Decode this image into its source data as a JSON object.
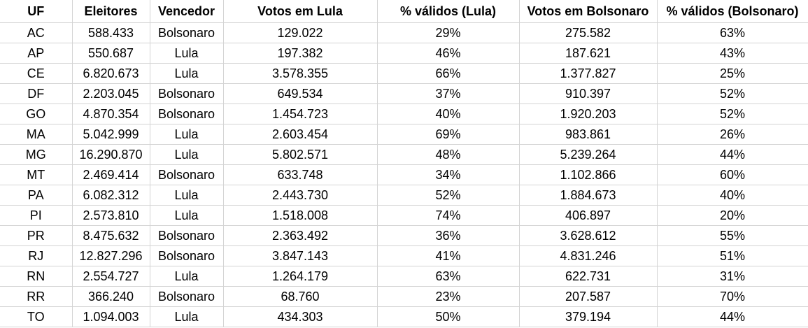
{
  "headers": {
    "uf": "UF",
    "eleitores": "Eleitores",
    "vencedor": "Vencedor",
    "votos_lula": "Votos em Lula",
    "pct_lula": "% válidos (Lula)",
    "votos_bolsonaro": "Votos em Bolsonaro",
    "pct_bolsonaro": "% válidos (Bolsonaro)"
  },
  "rows": [
    {
      "uf": "AC",
      "eleitores": "588.433",
      "vencedor": "Bolsonaro",
      "votos_lula": "129.022",
      "pct_lula": "29%",
      "votos_bolsonaro": "275.582",
      "pct_bolsonaro": "63%"
    },
    {
      "uf": "AP",
      "eleitores": "550.687",
      "vencedor": "Lula",
      "votos_lula": "197.382",
      "pct_lula": "46%",
      "votos_bolsonaro": "187.621",
      "pct_bolsonaro": "43%"
    },
    {
      "uf": "CE",
      "eleitores": "6.820.673",
      "vencedor": "Lula",
      "votos_lula": "3.578.355",
      "pct_lula": "66%",
      "votos_bolsonaro": "1.377.827",
      "pct_bolsonaro": "25%"
    },
    {
      "uf": "DF",
      "eleitores": "2.203.045",
      "vencedor": "Bolsonaro",
      "votos_lula": "649.534",
      "pct_lula": "37%",
      "votos_bolsonaro": "910.397",
      "pct_bolsonaro": "52%"
    },
    {
      "uf": "GO",
      "eleitores": "4.870.354",
      "vencedor": "Bolsonaro",
      "votos_lula": "1.454.723",
      "pct_lula": "40%",
      "votos_bolsonaro": "1.920.203",
      "pct_bolsonaro": "52%"
    },
    {
      "uf": "MA",
      "eleitores": "5.042.999",
      "vencedor": "Lula",
      "votos_lula": "2.603.454",
      "pct_lula": "69%",
      "votos_bolsonaro": "983.861",
      "pct_bolsonaro": "26%"
    },
    {
      "uf": "MG",
      "eleitores": "16.290.870",
      "vencedor": "Lula",
      "votos_lula": "5.802.571",
      "pct_lula": "48%",
      "votos_bolsonaro": "5.239.264",
      "pct_bolsonaro": "44%"
    },
    {
      "uf": "MT",
      "eleitores": "2.469.414",
      "vencedor": "Bolsonaro",
      "votos_lula": "633.748",
      "pct_lula": "34%",
      "votos_bolsonaro": "1.102.866",
      "pct_bolsonaro": "60%"
    },
    {
      "uf": "PA",
      "eleitores": "6.082.312",
      "vencedor": "Lula",
      "votos_lula": "2.443.730",
      "pct_lula": "52%",
      "votos_bolsonaro": "1.884.673",
      "pct_bolsonaro": "40%"
    },
    {
      "uf": "PI",
      "eleitores": "2.573.810",
      "vencedor": "Lula",
      "votos_lula": "1.518.008",
      "pct_lula": "74%",
      "votos_bolsonaro": "406.897",
      "pct_bolsonaro": "20%"
    },
    {
      "uf": "PR",
      "eleitores": "8.475.632",
      "vencedor": "Bolsonaro",
      "votos_lula": "2.363.492",
      "pct_lula": "36%",
      "votos_bolsonaro": "3.628.612",
      "pct_bolsonaro": "55%"
    },
    {
      "uf": "RJ",
      "eleitores": "12.827.296",
      "vencedor": "Bolsonaro",
      "votos_lula": "3.847.143",
      "pct_lula": "41%",
      "votos_bolsonaro": "4.831.246",
      "pct_bolsonaro": "51%"
    },
    {
      "uf": "RN",
      "eleitores": "2.554.727",
      "vencedor": "Lula",
      "votos_lula": "1.264.179",
      "pct_lula": "63%",
      "votos_bolsonaro": "622.731",
      "pct_bolsonaro": "31%"
    },
    {
      "uf": "RR",
      "eleitores": "366.240",
      "vencedor": "Bolsonaro",
      "votos_lula": "68.760",
      "pct_lula": "23%",
      "votos_bolsonaro": "207.587",
      "pct_bolsonaro": "70%"
    },
    {
      "uf": "TO",
      "eleitores": "1.094.003",
      "vencedor": "Lula",
      "votos_lula": "434.303",
      "pct_lula": "50%",
      "votos_bolsonaro": "379.194",
      "pct_bolsonaro": "44%"
    }
  ]
}
